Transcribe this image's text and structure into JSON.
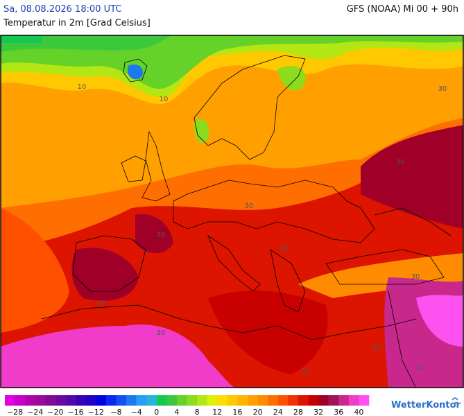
{
  "header": {
    "datetime": "Sa, 08.08.2026 18:00 UTC",
    "model": "GFS (NOAA) Mi 00 + 90h",
    "title": "Temperatur in 2m [Grad Celsius]"
  },
  "map": {
    "contour_labels": [
      "10",
      "10",
      "30",
      "30",
      "30",
      "30",
      "30",
      "30",
      "30",
      "30",
      "30",
      "30",
      "30"
    ]
  },
  "legend": {
    "colors": [
      "#e000e0",
      "#c800c8",
      "#b000b0",
      "#9a0a9a",
      "#820a96",
      "#6a0aa0",
      "#500aa8",
      "#3a00b4",
      "#1e00c8",
      "#0000e0",
      "#0a28f0",
      "#1450f0",
      "#1e78f0",
      "#28a0f0",
      "#28b4dc",
      "#14c850",
      "#3cc83c",
      "#64d228",
      "#8cdc1e",
      "#b4e614",
      "#dcf00a",
      "#ffdc00",
      "#ffc800",
      "#ffb400",
      "#ffa000",
      "#ff8c00",
      "#ff6e00",
      "#ff5000",
      "#f03200",
      "#dc1400",
      "#c80000",
      "#a00028",
      "#a0145a",
      "#c8288c",
      "#f03cc8",
      "#ff50f0"
    ],
    "labels": [
      "−28",
      "−24",
      "−20",
      "−16",
      "−12",
      "−8",
      "−4",
      "0",
      "4",
      "8",
      "12",
      "16",
      "20",
      "24",
      "28",
      "32",
      "36",
      "40"
    ]
  },
  "brand": "WetterKontor"
}
